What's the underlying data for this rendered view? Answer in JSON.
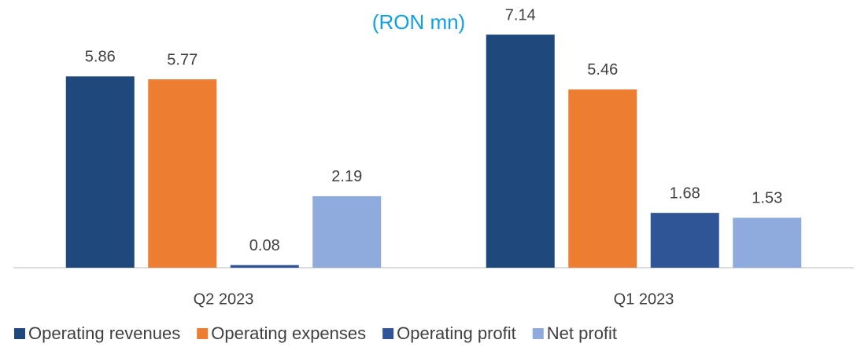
{
  "chart_data": {
    "type": "bar",
    "title": "(RON mn)",
    "categories": [
      "Q2 2023",
      "Q1 2023"
    ],
    "series": [
      {
        "name": "Operating revenues",
        "color": "#1f497d",
        "values": [
          5.86,
          7.14
        ]
      },
      {
        "name": "Operating expenses",
        "color": "#ed7d31",
        "values": [
          5.77,
          5.46
        ]
      },
      {
        "name": "Operating profit",
        "color": "#2f5597",
        "values": [
          0.08,
          1.68
        ]
      },
      {
        "name": "Net profit",
        "color": "#8faadc",
        "values": [
          2.19,
          1.53
        ]
      }
    ],
    "ylim": [
      0,
      8.2
    ],
    "legend": "bottom"
  }
}
